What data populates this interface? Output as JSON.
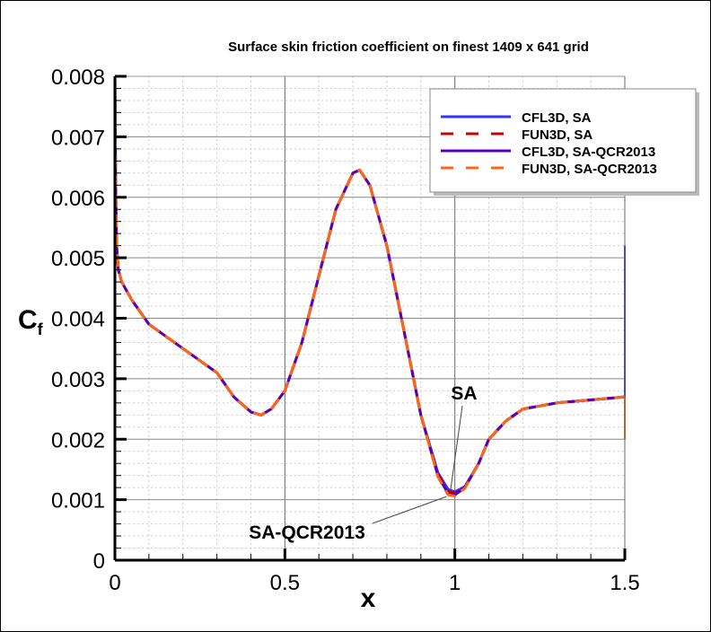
{
  "chart_data": {
    "type": "line",
    "title": "Surface skin friction coefficient on finest 1409 x 641 grid",
    "xlabel": "x",
    "ylabel": "C",
    "ylabel_subscript": "f",
    "xlim": [
      0,
      1.5
    ],
    "ylim": [
      0,
      0.008
    ],
    "xticks": [
      0,
      0.5,
      1,
      1.5
    ],
    "xtick_labels": [
      "0",
      "0.5",
      "1",
      "1.5"
    ],
    "yticks": [
      0,
      0.001,
      0.002,
      0.003,
      0.004,
      0.005,
      0.006,
      0.007,
      0.008
    ],
    "ytick_labels": [
      "0",
      "0.001",
      "0.002",
      "0.003",
      "0.004",
      "0.005",
      "0.006",
      "0.007",
      "0.008"
    ],
    "grid": true,
    "minor_grid": true,
    "legend_placement": "top-right",
    "x": [
      0,
      0.002,
      0.005,
      0.01,
      0.02,
      0.05,
      0.1,
      0.15,
      0.2,
      0.25,
      0.3,
      0.35,
      0.4,
      0.43,
      0.46,
      0.5,
      0.55,
      0.6,
      0.65,
      0.7,
      0.72,
      0.75,
      0.8,
      0.85,
      0.9,
      0.95,
      0.98,
      1.0,
      1.03,
      1.07,
      1.1,
      1.15,
      1.2,
      1.3,
      1.4,
      1.5
    ],
    "series": [
      {
        "name": "CFL3D, SA",
        "color": "#3333ff",
        "dash": "solid",
        "values": [
          0.008,
          0.0062,
          0.0052,
          0.0048,
          0.0046,
          0.0043,
          0.0039,
          0.0037,
          0.0035,
          0.0033,
          0.0031,
          0.0027,
          0.00245,
          0.0024,
          0.0025,
          0.0028,
          0.0036,
          0.0047,
          0.0058,
          0.0064,
          0.00645,
          0.0062,
          0.0052,
          0.0038,
          0.0024,
          0.00145,
          0.00117,
          0.00113,
          0.00122,
          0.0016,
          0.002,
          0.0023,
          0.0025,
          0.0026,
          0.00265,
          0.0027
        ],
        "end_spike": 0.0052
      },
      {
        "name": "FUN3D, SA",
        "color": "#cc0000",
        "dash": "dashed",
        "values": [
          0.008,
          0.0062,
          0.0052,
          0.0048,
          0.0046,
          0.0043,
          0.0039,
          0.0037,
          0.0035,
          0.0033,
          0.0031,
          0.0027,
          0.00245,
          0.0024,
          0.0025,
          0.0028,
          0.0036,
          0.0047,
          0.0058,
          0.0064,
          0.00645,
          0.0062,
          0.0052,
          0.0038,
          0.0024,
          0.00142,
          0.00114,
          0.00111,
          0.00121,
          0.0016,
          0.002,
          0.0023,
          0.0025,
          0.0026,
          0.00265,
          0.0027
        ],
        "end_spike": 0.002
      },
      {
        "name": "CFL3D, SA-QCR2013",
        "color": "#5500bb",
        "dash": "solid",
        "values": [
          0.008,
          0.0062,
          0.0052,
          0.0048,
          0.0046,
          0.0043,
          0.0039,
          0.0037,
          0.0035,
          0.0033,
          0.0031,
          0.0027,
          0.00245,
          0.0024,
          0.0025,
          0.0028,
          0.0036,
          0.0047,
          0.0058,
          0.0064,
          0.00645,
          0.0062,
          0.0052,
          0.0038,
          0.0024,
          0.0014,
          0.0011,
          0.00108,
          0.0012,
          0.0016,
          0.002,
          0.0023,
          0.0025,
          0.0026,
          0.00265,
          0.0027
        ],
        "end_spike": 0.002
      },
      {
        "name": "FUN3D, SA-QCR2013",
        "color": "#ff6611",
        "dash": "dashed",
        "values": [
          0.008,
          0.0062,
          0.0052,
          0.0048,
          0.0046,
          0.0043,
          0.0039,
          0.0037,
          0.0035,
          0.0033,
          0.0031,
          0.0027,
          0.00245,
          0.0024,
          0.0025,
          0.0028,
          0.0036,
          0.0047,
          0.0058,
          0.0064,
          0.00645,
          0.0062,
          0.0052,
          0.0038,
          0.0024,
          0.00138,
          0.00108,
          0.00106,
          0.00119,
          0.0016,
          0.002,
          0.0023,
          0.0025,
          0.0026,
          0.00265,
          0.0027
        ],
        "end_spike": 0.002
      }
    ],
    "annotations": [
      {
        "text": "SA",
        "points_to": [
          0.99,
          0.00113
        ]
      },
      {
        "text": "SA-QCR2013",
        "points_to": [
          0.98,
          0.00108
        ]
      }
    ]
  }
}
